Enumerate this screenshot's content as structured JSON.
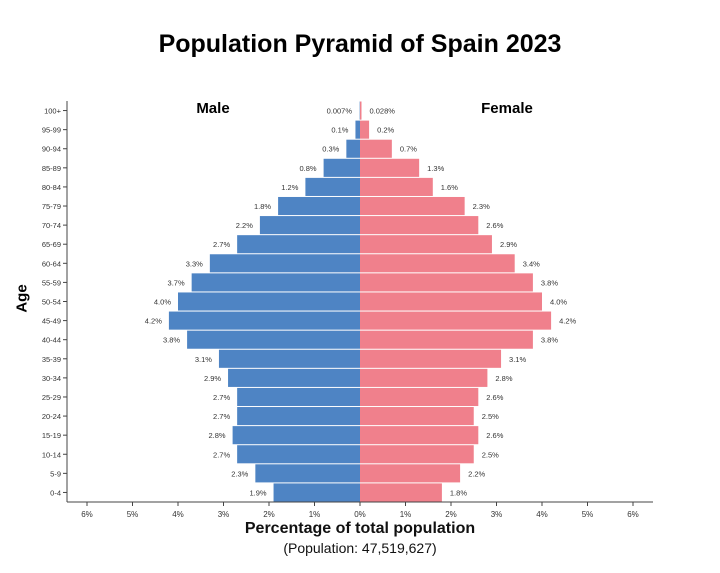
{
  "chart_data": {
    "type": "bar",
    "orientation": "horizontal-pyramid",
    "title": "Population Pyramid of Spain 2023",
    "xlabel": "Percentage of total population",
    "subtitle": "(Population: 47,519,627)",
    "ylabel": "Age",
    "xlim": [
      -6,
      6
    ],
    "xticks": [
      "6%",
      "5%",
      "4%",
      "3%",
      "2%",
      "1%",
      "0%",
      "1%",
      "2%",
      "3%",
      "4%",
      "5%",
      "6%"
    ],
    "grid": false,
    "categories": [
      "0-4",
      "5-9",
      "10-14",
      "15-19",
      "20-24",
      "25-29",
      "30-34",
      "35-39",
      "40-44",
      "45-49",
      "50-54",
      "55-59",
      "60-64",
      "65-69",
      "70-74",
      "75-79",
      "80-84",
      "85-89",
      "90-94",
      "95-99",
      "100+"
    ],
    "series": [
      {
        "name": "Male",
        "color": "#4e84c4",
        "values": [
          1.9,
          2.3,
          2.7,
          2.8,
          2.7,
          2.7,
          2.9,
          3.1,
          3.8,
          4.2,
          4.0,
          3.7,
          3.3,
          2.7,
          2.2,
          1.8,
          1.2,
          0.8,
          0.3,
          0.1,
          0.007
        ],
        "labels": [
          "1.9%",
          "2.3%",
          "2.7%",
          "2.8%",
          "2.7%",
          "2.7%",
          "2.9%",
          "3.1%",
          "3.8%",
          "4.2%",
          "4.0%",
          "3.7%",
          "3.3%",
          "2.7%",
          "2.2%",
          "1.8%",
          "1.2%",
          "0.8%",
          "0.3%",
          "0.1%",
          "0.007%"
        ]
      },
      {
        "name": "Female",
        "color": "#f0808c",
        "values": [
          1.8,
          2.2,
          2.5,
          2.6,
          2.5,
          2.6,
          2.8,
          3.1,
          3.8,
          4.2,
          4.0,
          3.8,
          3.4,
          2.9,
          2.6,
          2.3,
          1.6,
          1.3,
          0.7,
          0.2,
          0.028
        ],
        "labels": [
          "1.8%",
          "2.2%",
          "2.5%",
          "2.6%",
          "2.5%",
          "2.6%",
          "2.8%",
          "3.1%",
          "3.8%",
          "4.2%",
          "4.0%",
          "3.8%",
          "3.4%",
          "2.9%",
          "2.6%",
          "2.3%",
          "1.6%",
          "1.3%",
          "0.7%",
          "0.2%",
          "0.028%"
        ]
      }
    ]
  }
}
